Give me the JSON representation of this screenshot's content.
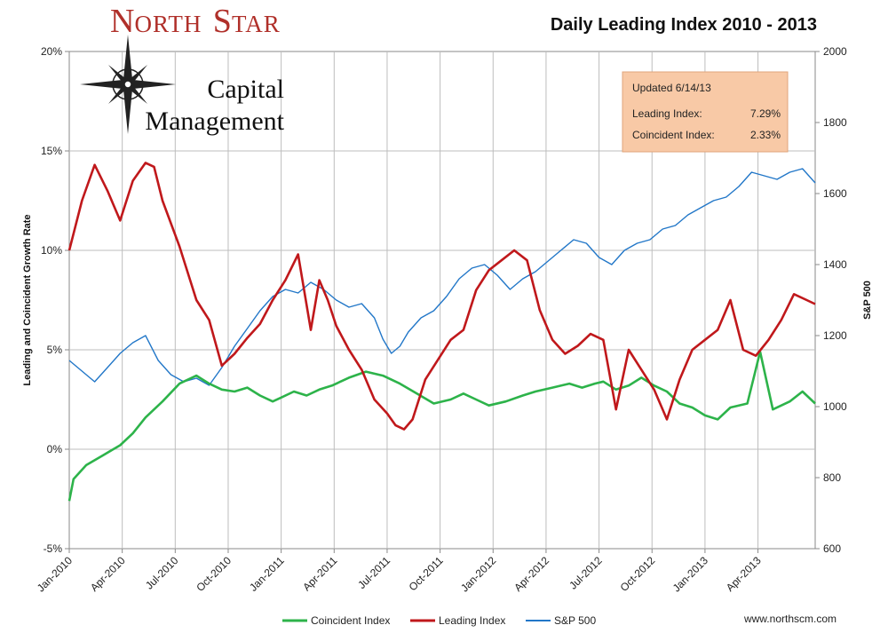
{
  "chart_data": {
    "type": "line",
    "title": "Daily Leading Index 2010 - 2013",
    "ylabel": "Leading and Coincident Growth Rate",
    "y2label": "S&P 500",
    "ylim": [
      -5,
      20
    ],
    "y2lim": [
      600,
      2000
    ],
    "y_ticks": [
      -5,
      0,
      5,
      10,
      15,
      20
    ],
    "y_tick_labels": [
      "-5%",
      "0%",
      "5%",
      "10%",
      "15%",
      "20%"
    ],
    "y2_ticks": [
      600,
      800,
      1000,
      1200,
      1400,
      1600,
      1800,
      2000
    ],
    "y2_tick_labels": [
      "600",
      "800",
      "1000",
      "1200",
      "1400",
      "1600",
      "1800",
      "2000"
    ],
    "x_tick_labels": [
      "Jan-2010",
      "Apr-2010",
      "Jul-2010",
      "Oct-2010",
      "Jan-2011",
      "Apr-2011",
      "Jul-2011",
      "Oct-2011",
      "Jan-2012",
      "Apr-2012",
      "Jul-2012",
      "Oct-2012",
      "Jan-2013",
      "Apr-2013"
    ],
    "x_range_months": [
      0,
      17.6
    ],
    "grid": "vertical",
    "series": [
      {
        "name": "Coincident Index",
        "axis": "left",
        "color": "#2db34a",
        "x": [
          0,
          0.1,
          0.4,
          0.8,
          1.2,
          1.5,
          1.8,
          2.2,
          2.6,
          3.0,
          3.3,
          3.6,
          3.9,
          4.2,
          4.5,
          4.8,
          5.0,
          5.3,
          5.6,
          5.9,
          6.2,
          6.6,
          7.0,
          7.4,
          7.8,
          8.2,
          8.6,
          9.0,
          9.3,
          9.6,
          9.9,
          10.3,
          10.7,
          11.0,
          11.4,
          11.8,
          12.1,
          12.4,
          12.6,
          12.9,
          13.2,
          13.5,
          13.8,
          14.1,
          14.4,
          14.7,
          15.0,
          15.3,
          15.6,
          16.0,
          16.3,
          16.6,
          17.0,
          17.3,
          17.6
        ],
        "values": [
          -2.6,
          -1.5,
          -0.8,
          -0.3,
          0.2,
          0.8,
          1.6,
          2.4,
          3.3,
          3.7,
          3.3,
          3.0,
          2.9,
          3.1,
          2.7,
          2.4,
          2.6,
          2.9,
          2.7,
          3.0,
          3.2,
          3.6,
          3.9,
          3.7,
          3.3,
          2.8,
          2.3,
          2.5,
          2.8,
          2.5,
          2.2,
          2.4,
          2.7,
          2.9,
          3.1,
          3.3,
          3.1,
          3.3,
          3.4,
          3.0,
          3.2,
          3.6,
          3.2,
          2.9,
          2.3,
          2.1,
          1.7,
          1.5,
          2.1,
          2.3,
          4.9,
          2.0,
          2.4,
          2.9,
          2.3
        ]
      },
      {
        "name": "Leading Index",
        "axis": "left",
        "color": "#c0181b",
        "x": [
          0,
          0.3,
          0.6,
          0.9,
          1.2,
          1.5,
          1.8,
          2.0,
          2.2,
          2.6,
          3.0,
          3.3,
          3.6,
          3.9,
          4.2,
          4.5,
          4.8,
          5.1,
          5.4,
          5.7,
          5.9,
          6.1,
          6.3,
          6.6,
          6.9,
          7.2,
          7.5,
          7.7,
          7.9,
          8.1,
          8.4,
          8.7,
          9.0,
          9.3,
          9.6,
          9.9,
          10.2,
          10.5,
          10.8,
          11.1,
          11.4,
          11.7,
          12.0,
          12.3,
          12.6,
          12.9,
          13.2,
          13.5,
          13.8,
          14.1,
          14.4,
          14.7,
          15.0,
          15.3,
          15.6,
          15.9,
          16.2,
          16.5,
          16.8,
          17.1,
          17.4,
          17.6
        ],
        "values": [
          10.0,
          12.5,
          14.3,
          13.0,
          11.5,
          13.5,
          14.4,
          14.2,
          12.5,
          10.2,
          7.5,
          6.5,
          4.2,
          4.8,
          5.6,
          6.3,
          7.5,
          8.5,
          9.8,
          6.0,
          8.5,
          7.5,
          6.2,
          5.0,
          4.0,
          2.5,
          1.8,
          1.2,
          1.0,
          1.5,
          3.5,
          4.5,
          5.5,
          6.0,
          8.0,
          9.0,
          9.5,
          10.0,
          9.5,
          7.0,
          5.5,
          4.8,
          5.2,
          5.8,
          5.5,
          2.0,
          5.0,
          4.0,
          3.0,
          1.5,
          3.5,
          5.0,
          5.5,
          6.0,
          7.5,
          5.0,
          4.7,
          5.5,
          6.5,
          7.8,
          7.5,
          7.3
        ]
      },
      {
        "name": "S&P 500",
        "axis": "right",
        "color": "#2277c8",
        "x": [
          0,
          0.3,
          0.6,
          0.9,
          1.2,
          1.5,
          1.8,
          2.1,
          2.4,
          2.7,
          3.0,
          3.3,
          3.6,
          3.9,
          4.2,
          4.5,
          4.8,
          5.1,
          5.4,
          5.7,
          6.0,
          6.3,
          6.6,
          6.9,
          7.2,
          7.4,
          7.6,
          7.8,
          8.0,
          8.3,
          8.6,
          8.9,
          9.2,
          9.5,
          9.8,
          10.1,
          10.4,
          10.7,
          11.0,
          11.3,
          11.6,
          11.9,
          12.2,
          12.5,
          12.8,
          13.1,
          13.4,
          13.7,
          14.0,
          14.3,
          14.6,
          14.9,
          15.2,
          15.5,
          15.8,
          16.1,
          16.4,
          16.7,
          17.0,
          17.3,
          17.6
        ],
        "values": [
          1130,
          1100,
          1070,
          1110,
          1150,
          1180,
          1200,
          1130,
          1090,
          1070,
          1080,
          1060,
          1110,
          1170,
          1220,
          1270,
          1310,
          1330,
          1320,
          1350,
          1330,
          1300,
          1280,
          1290,
          1250,
          1190,
          1150,
          1170,
          1210,
          1250,
          1270,
          1310,
          1360,
          1390,
          1400,
          1370,
          1330,
          1360,
          1380,
          1410,
          1440,
          1470,
          1460,
          1420,
          1400,
          1440,
          1460,
          1470,
          1500,
          1510,
          1540,
          1560,
          1580,
          1590,
          1620,
          1660,
          1650,
          1640,
          1660,
          1670,
          1630
        ]
      }
    ]
  },
  "logo": {
    "first_initial": "N",
    "first_rest": "ORTH",
    "second_initial": "S",
    "second_rest": "TAR",
    "line2": "Capital",
    "line3": "Management"
  },
  "info_box": {
    "updated": "Updated  6/14/13",
    "leading_label": "Leading Index:",
    "leading_value": "7.29%",
    "coincident_label": "Coincident Index:",
    "coincident_value": "2.33%"
  },
  "legend": [
    "Coincident Index",
    "Leading Index",
    "S&P 500"
  ],
  "website": "www.northscm.com",
  "colors": {
    "coincident": "#2db34a",
    "leading": "#c0181b",
    "sp500": "#2277c8",
    "info_box_fill": "#f8c9a6",
    "grid": "#bdbdbd",
    "logo_red": "#b0302a"
  }
}
